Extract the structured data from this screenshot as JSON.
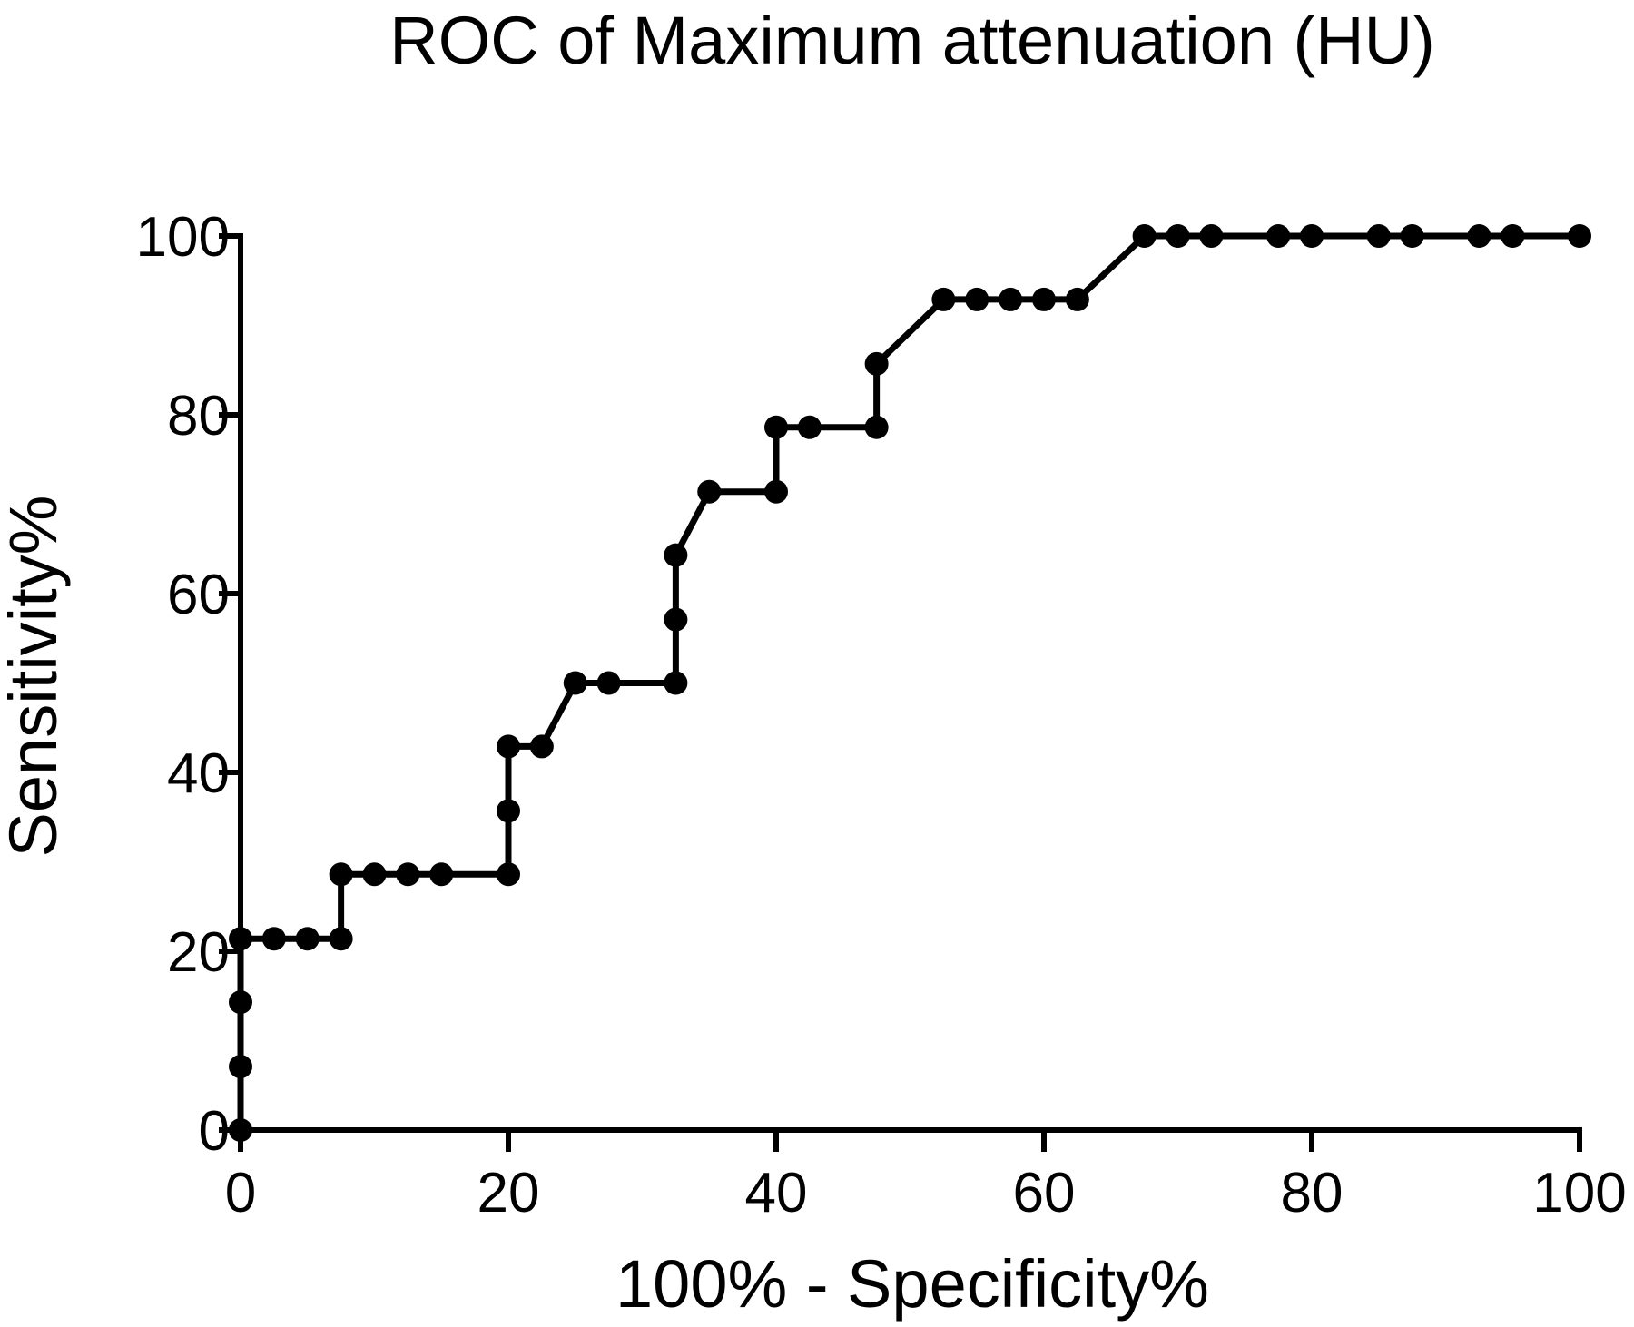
{
  "chart_data": {
    "type": "line",
    "title": "ROC of Maximum attenuation (HU)",
    "xlabel": "100% - Specificity%",
    "ylabel": "Sensitivity%",
    "xlim": [
      0,
      100
    ],
    "ylim": [
      0,
      100
    ],
    "x_ticks": [
      0,
      20,
      40,
      60,
      80,
      100
    ],
    "y_ticks": [
      0,
      20,
      40,
      60,
      80,
      100
    ],
    "x_tick_labels": [
      "0",
      "20",
      "40",
      "60",
      "80",
      "100"
    ],
    "y_tick_labels": [
      "0",
      "20",
      "40",
      "60",
      "80",
      "100"
    ],
    "grid": false,
    "legend": "none",
    "markers": true,
    "series": [
      {
        "x": [
          0,
          0,
          0,
          0,
          2.5,
          5,
          7.5,
          7.5,
          10,
          12.5,
          15,
          20,
          20,
          20,
          22.5,
          25,
          27.5,
          32.5,
          32.5,
          32.5,
          35,
          40,
          40,
          42.5,
          47.5,
          47.5,
          52.5,
          55,
          57.5,
          60,
          62.5,
          67.5,
          70,
          72.5,
          77.5,
          80,
          85,
          87.5,
          92.5,
          95,
          100
        ],
        "y": [
          0,
          7.1,
          14.3,
          21.4,
          21.4,
          21.4,
          21.4,
          28.6,
          28.6,
          28.6,
          28.6,
          28.6,
          35.7,
          42.9,
          42.9,
          50,
          50,
          50,
          57.1,
          64.3,
          71.4,
          71.4,
          78.6,
          78.6,
          78.6,
          85.7,
          92.9,
          92.9,
          92.9,
          92.9,
          92.9,
          100,
          100,
          100,
          100,
          100,
          100,
          100,
          100,
          100,
          100
        ]
      }
    ],
    "colors": {
      "line": "#000000",
      "marker": "#000000",
      "background": "#ffffff"
    }
  }
}
